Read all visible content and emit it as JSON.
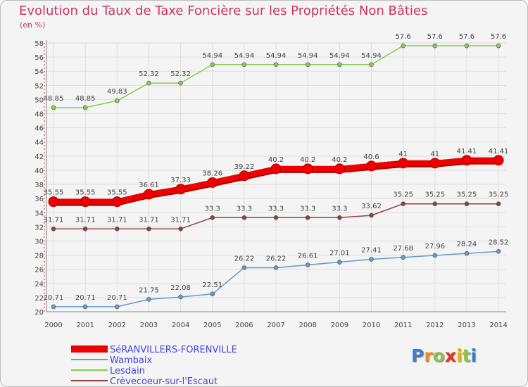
{
  "title": "Evolution du Taux de Taxe Foncière sur les Propriétés Non Bâties",
  "unit_label": "(en %)",
  "logo": {
    "text": "Proxiti",
    "letter_colors": [
      "#3a7fd0",
      "#f08a24",
      "#8bc34a",
      "#e0312a",
      "#f0b400",
      "#8bc34a",
      "#3a7fd0"
    ]
  },
  "chart_data": {
    "type": "line",
    "title": "Evolution du Taux de Taxe Foncière sur les Propriétés Non Bâties",
    "ylabel": "(en %)",
    "xlabel": "",
    "x": [
      2000,
      2001,
      2002,
      2003,
      2004,
      2005,
      2006,
      2007,
      2008,
      2009,
      2010,
      2011,
      2012,
      2013,
      2014
    ],
    "ylim": [
      20,
      58
    ],
    "yticks": [
      20,
      22,
      24,
      26,
      28,
      30,
      32,
      34,
      36,
      38,
      40,
      42,
      44,
      46,
      48,
      50,
      52,
      54,
      56,
      58
    ],
    "grid": true,
    "legend_position": "bottom-left",
    "series": [
      {
        "name": "SéRANVILLERS-FORENVILLE",
        "color": "#ee0000",
        "emphasis": true,
        "values": [
          35.55,
          35.55,
          35.55,
          36.61,
          37.33,
          38.26,
          39.22,
          40.2,
          40.2,
          40.2,
          40.6,
          41,
          41,
          41.41,
          41.41
        ],
        "labels": [
          "35.55",
          "35.55",
          "35.55",
          "36.61",
          "37.33",
          "38.26",
          "39.22",
          "40.2",
          "40.2",
          "40.2",
          "40.6",
          "41",
          "41",
          "41.41",
          "41.41"
        ]
      },
      {
        "name": "Wambaix",
        "color": "#6699cc",
        "emphasis": false,
        "values": [
          20.71,
          20.71,
          20.71,
          21.75,
          22.08,
          22.51,
          26.22,
          26.22,
          26.61,
          27.01,
          27.41,
          27.68,
          27.96,
          28.24,
          28.52
        ],
        "labels": [
          "20.71",
          "20.71",
          "20.71",
          "21.75",
          "22.08",
          "22.51",
          "26.22",
          "26.22",
          "26.61",
          "27.01",
          "27.41",
          "27.68",
          "27.96",
          "28.24",
          "28.52"
        ]
      },
      {
        "name": "Lesdain",
        "color": "#88cc55",
        "emphasis": false,
        "values": [
          48.85,
          48.85,
          49.83,
          52.32,
          52.32,
          54.94,
          54.94,
          54.94,
          54.94,
          54.94,
          54.94,
          57.6,
          57.6,
          57.6,
          57.6
        ],
        "labels": [
          "48.85",
          "48.85",
          "49.83",
          "52.32",
          "52.32",
          "54.94",
          "54.94",
          "54.94",
          "54.94",
          "54.94",
          "54.94",
          "57.6",
          "57.6",
          "57.6",
          "57.6"
        ]
      },
      {
        "name": "Crèvecoeur-sur-l'Escaut",
        "color": "#884444",
        "emphasis": false,
        "values": [
          31.71,
          31.71,
          31.71,
          31.71,
          31.71,
          33.3,
          33.3,
          33.3,
          33.3,
          33.3,
          33.62,
          35.25,
          35.25,
          35.25,
          35.25
        ],
        "labels": [
          "31.71",
          "31.71",
          "31.71",
          "31.71",
          "31.71",
          "33.3",
          "33.3",
          "33.3",
          "33.3",
          "33.3",
          "33.62",
          "35.25",
          "35.25",
          "35.25",
          "35.25"
        ]
      }
    ]
  }
}
